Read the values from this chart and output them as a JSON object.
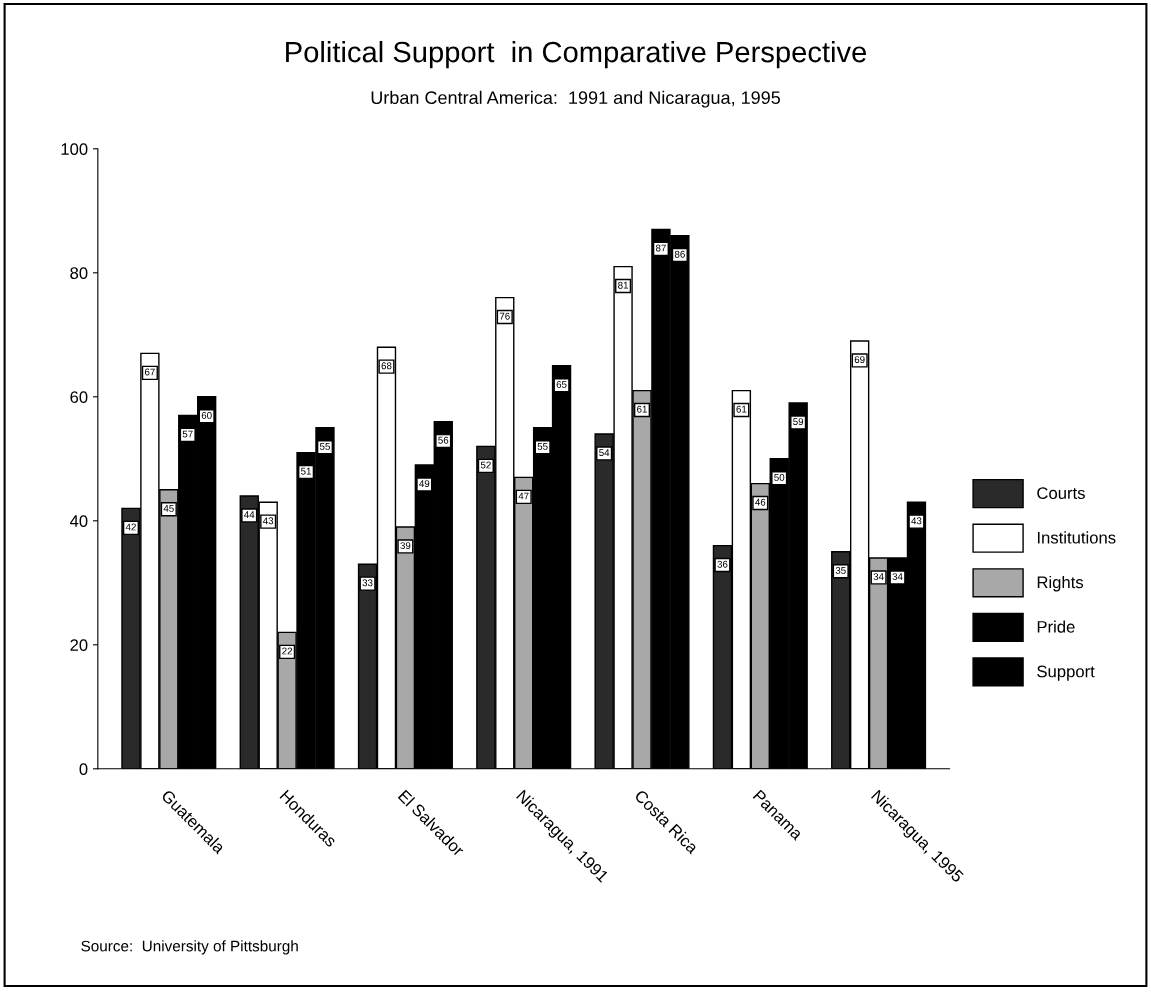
{
  "chart_data": {
    "type": "bar",
    "title": "Political Support  in Comparative Perspective",
    "subtitle": "Urban Central America:  1991 and Nicaragua, 1995",
    "categories": [
      "Guatemala",
      "Honduras",
      "El Salvador",
      "Nicaragua, 1991",
      "Costa Rica",
      "Panama",
      "Nicaragua, 1995"
    ],
    "series": [
      {
        "name": "Courts",
        "color": "#2a2a2a",
        "values": [
          42,
          44,
          33,
          52,
          54,
          36,
          35
        ]
      },
      {
        "name": "Institutions",
        "color": "#ffffff",
        "values": [
          67,
          43,
          68,
          76,
          81,
          61,
          69
        ]
      },
      {
        "name": "Rights",
        "color": "#a8a8a8",
        "values": [
          45,
          22,
          39,
          47,
          61,
          46,
          34
        ]
      },
      {
        "name": "Pride",
        "color": "#000000",
        "values": [
          57,
          51,
          49,
          55,
          87,
          50,
          34
        ]
      },
      {
        "name": "Support",
        "color": "#000000",
        "values": [
          60,
          55,
          56,
          65,
          86,
          59,
          43
        ]
      }
    ],
    "ylim": [
      0,
      100
    ],
    "yticks": [
      0,
      20,
      40,
      60,
      80,
      100
    ],
    "grid": false,
    "legend": "right",
    "data_labels": true,
    "annotations": [
      "Source:  University of Pittsburgh"
    ]
  }
}
